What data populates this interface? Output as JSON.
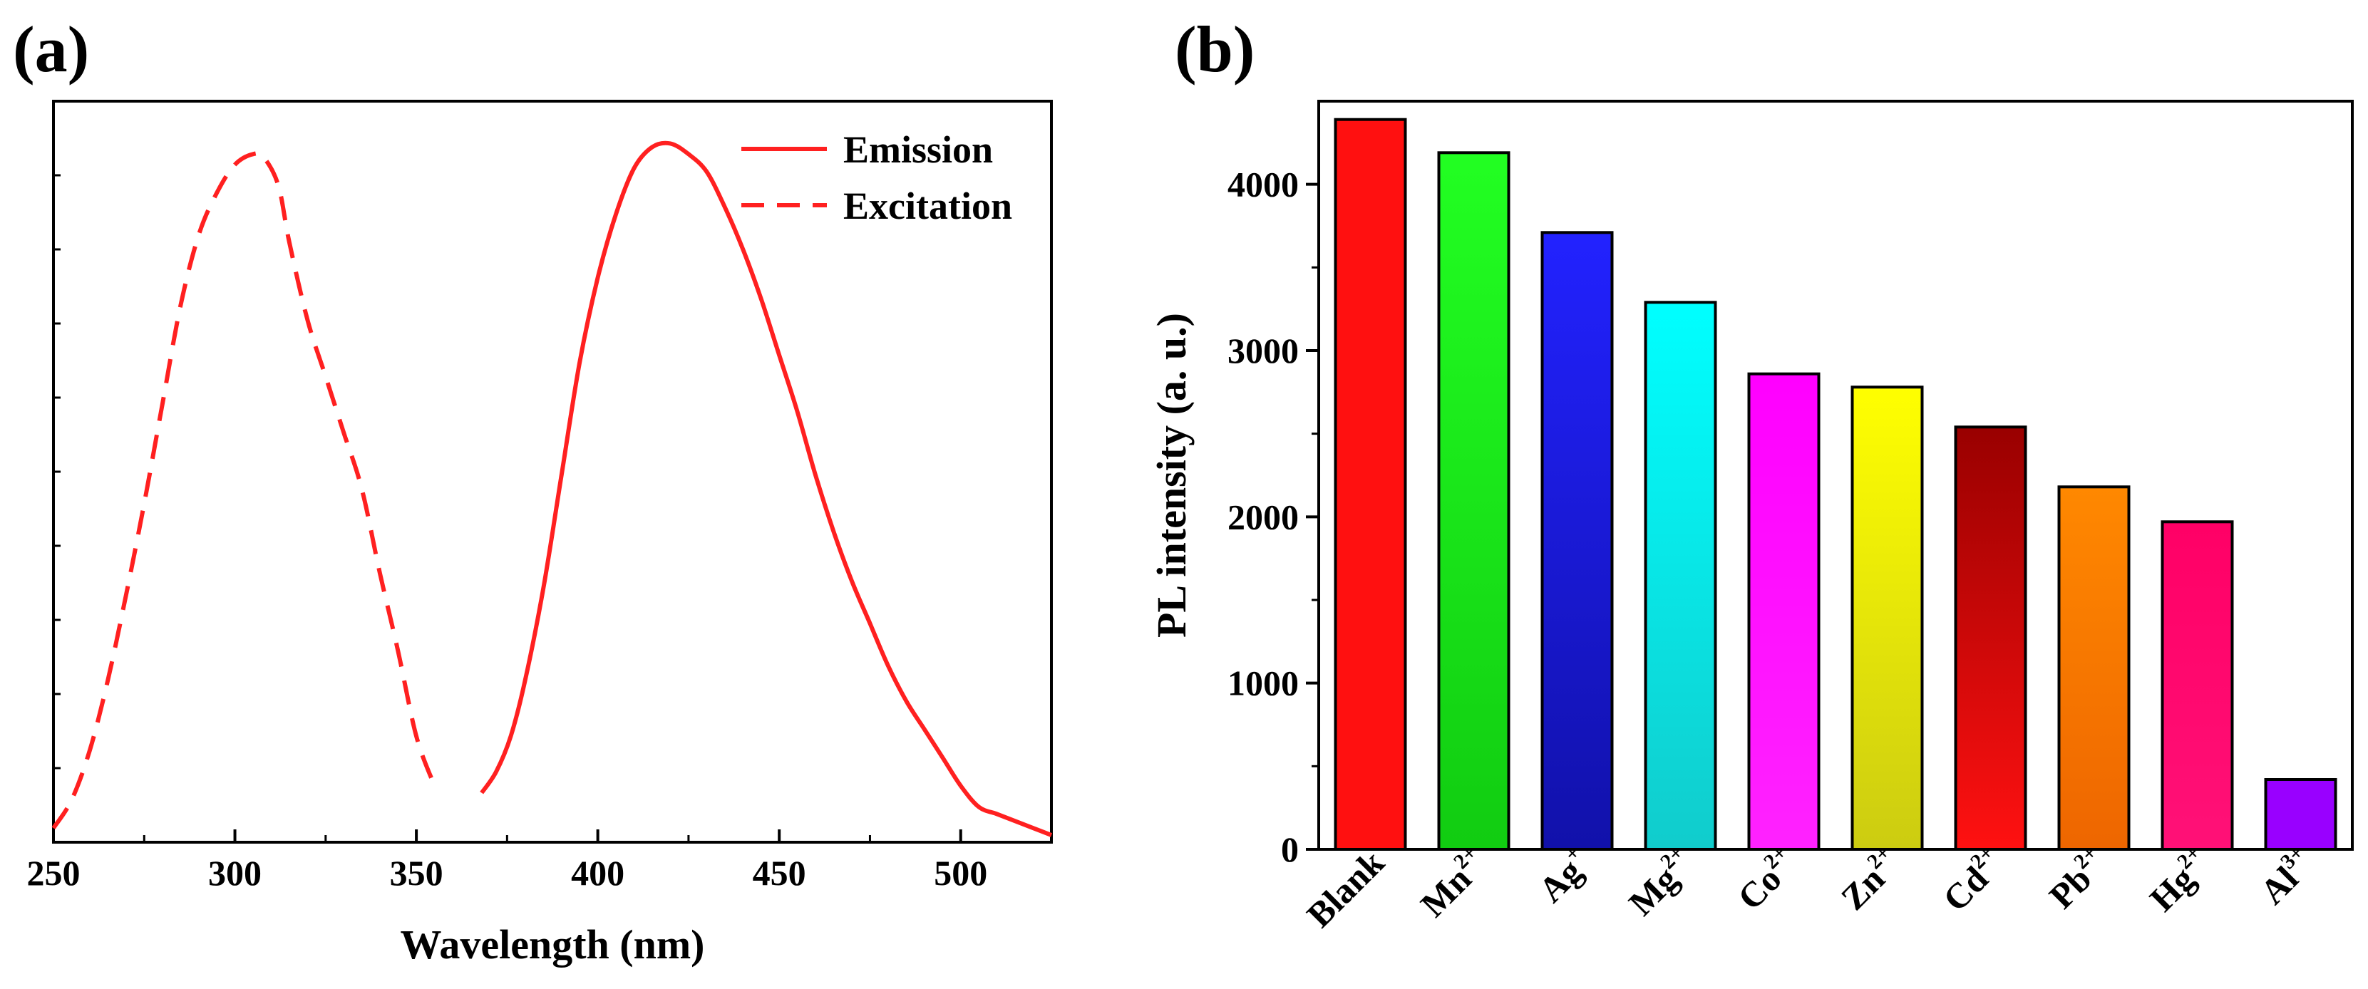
{
  "chart_data": [
    {
      "panel": "(a)",
      "type": "line",
      "xlabel": "Wavelength (nm)",
      "ylabel": "",
      "xlim": [
        250,
        525
      ],
      "ylim": [
        0,
        1.05
      ],
      "xticks": [
        250,
        300,
        350,
        400,
        450,
        500
      ],
      "yticks_labeled": false,
      "legend": "top-right",
      "series": [
        {
          "name": "Emission",
          "style": "solid",
          "color": "#ff2020",
          "x": [
            368,
            372,
            376,
            380,
            385,
            390,
            395,
            400,
            405,
            410,
            415,
            420,
            425,
            430,
            435,
            440,
            445,
            450,
            455,
            460,
            465,
            470,
            475,
            480,
            485,
            490,
            495,
            500,
            505,
            510,
            515,
            520,
            525
          ],
          "y": [
            0.07,
            0.1,
            0.15,
            0.23,
            0.36,
            0.52,
            0.68,
            0.8,
            0.89,
            0.955,
            0.985,
            0.99,
            0.975,
            0.95,
            0.9,
            0.84,
            0.77,
            0.69,
            0.61,
            0.52,
            0.44,
            0.37,
            0.31,
            0.25,
            0.2,
            0.16,
            0.12,
            0.08,
            0.05,
            0.04,
            0.03,
            0.02,
            0.01
          ]
        },
        {
          "name": "Excitation",
          "style": "dashed",
          "color": "#ff2020",
          "x": [
            250,
            255,
            260,
            265,
            270,
            275,
            280,
            285,
            290,
            295,
            300,
            305,
            308,
            312,
            315,
            320,
            325,
            330,
            335,
            340,
            345,
            350,
            355
          ],
          "y": [
            0.02,
            0.06,
            0.13,
            0.23,
            0.35,
            0.48,
            0.62,
            0.76,
            0.86,
            0.92,
            0.96,
            0.975,
            0.97,
            0.93,
            0.85,
            0.74,
            0.66,
            0.58,
            0.5,
            0.38,
            0.27,
            0.15,
            0.08
          ]
        }
      ]
    },
    {
      "panel": "(b)",
      "type": "bar",
      "ylabel": "PL intensity (a. u.)",
      "ylim": [
        0,
        4500
      ],
      "yticks": [
        0,
        1000,
        2000,
        3000,
        4000
      ],
      "categories": [
        {
          "base": "Blank",
          "sup": ""
        },
        {
          "base": "Mn",
          "sup": "2+"
        },
        {
          "base": "Ag",
          "sup": "+"
        },
        {
          "base": "Mg",
          "sup": "2+"
        },
        {
          "base": "Co",
          "sup": "2+"
        },
        {
          "base": "Zn",
          "sup": "2+"
        },
        {
          "base": "Cd",
          "sup": "2+"
        },
        {
          "base": "Pb",
          "sup": "2+"
        },
        {
          "base": "Hg",
          "sup": "2+"
        },
        {
          "base": "Al",
          "sup": "3+"
        }
      ],
      "values": [
        4390,
        4190,
        3710,
        3290,
        2860,
        2780,
        2540,
        2180,
        1970,
        420
      ],
      "colors": [
        [
          "#ff1010",
          "#ff1010"
        ],
        [
          "#22ff22",
          "#11cc11"
        ],
        [
          "#2222ff",
          "#1111aa"
        ],
        [
          "#00ffff",
          "#11cccc"
        ],
        [
          "#ff00ff",
          "#ff22ff"
        ],
        [
          "#ffff00",
          "#cccc11"
        ],
        [
          "#990000",
          "#ff1111"
        ],
        [
          "#ff8800",
          "#ee6600"
        ],
        [
          "#ff0066",
          "#ff1177"
        ],
        [
          "#9900ff",
          "#9900ff"
        ]
      ]
    }
  ]
}
